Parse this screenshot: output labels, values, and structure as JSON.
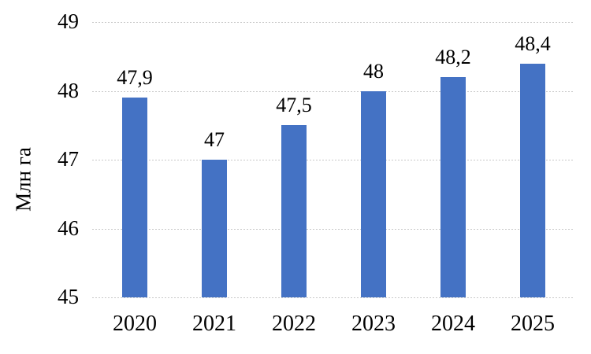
{
  "chart_data": {
    "type": "bar",
    "title": "",
    "xlabel": "",
    "ylabel": "Млн га",
    "categories": [
      "2020",
      "2021",
      "2022",
      "2023",
      "2024",
      "2025"
    ],
    "values": [
      47.9,
      47,
      47.5,
      48,
      48.2,
      48.4
    ],
    "value_labels": [
      "47,9",
      "47",
      "47,5",
      "48",
      "48,2",
      "48,4"
    ],
    "ylim": [
      45,
      49
    ],
    "yticks": [
      45,
      46,
      47,
      48,
      49
    ],
    "ytick_labels": [
      "45",
      "46",
      "47",
      "48",
      "49"
    ],
    "grid": true,
    "gridline_style": "dotted",
    "legend": "none",
    "bar_color": "#4472C4",
    "gridline_color": "#C9C9C9",
    "text_color": "#000000",
    "background_color": "#FFFFFF"
  }
}
